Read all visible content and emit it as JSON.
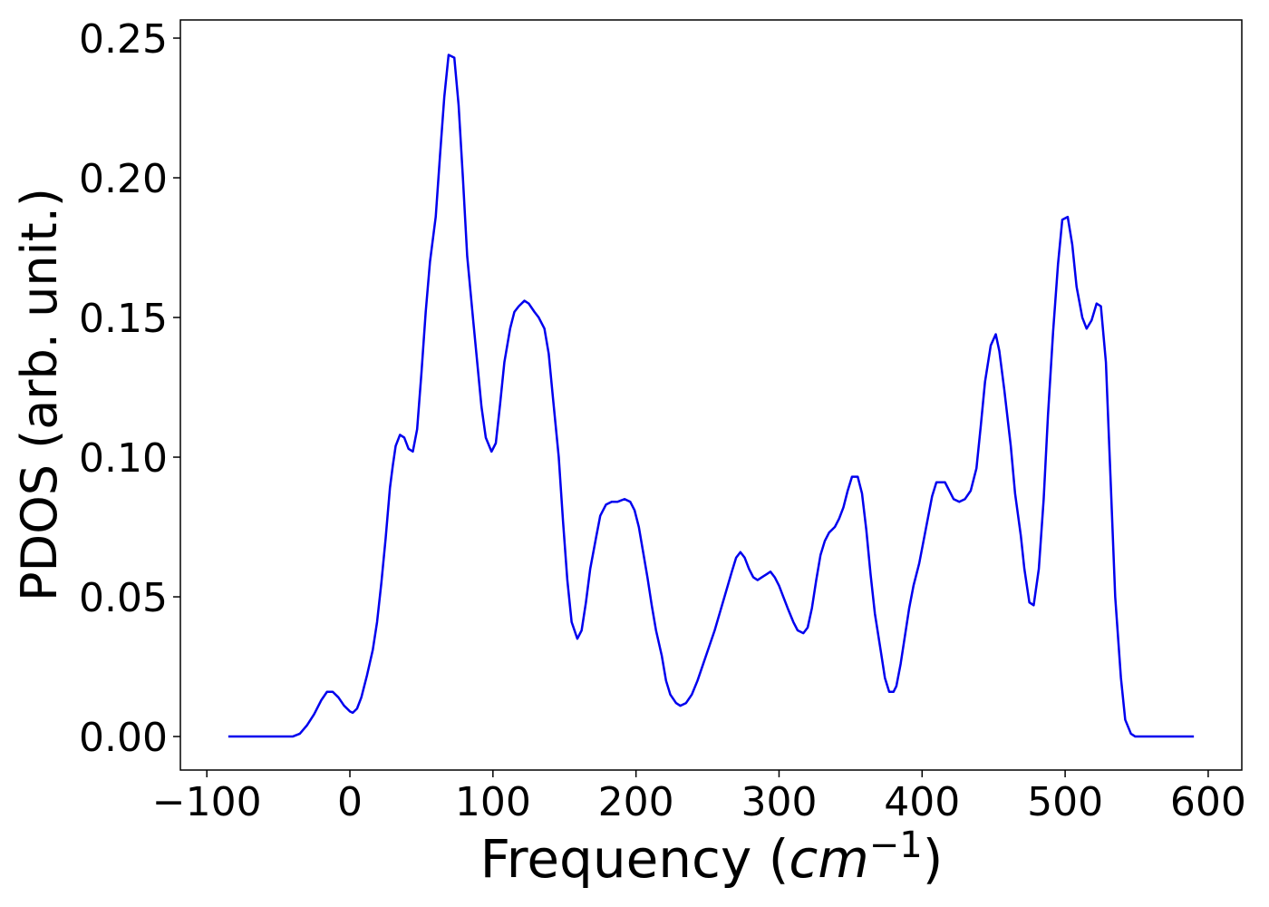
{
  "chart_data": {
    "type": "line",
    "ylabel": "PDOS (arb. unit.)",
    "xlabel": [
      "Frequency (",
      "cm",
      "−1",
      ")"
    ],
    "color": "#0000ee",
    "xlim": [
      -118.5,
      623.5
    ],
    "ylim": [
      -0.012,
      0.2565
    ],
    "xticks": [
      {
        "value": -100,
        "label": "−100"
      },
      0,
      100,
      200,
      300,
      400,
      500,
      600
    ],
    "yticks": [
      {
        "value": 0,
        "label": "0.00"
      },
      {
        "value": 0.05,
        "label": "0.05"
      },
      {
        "value": 0.1,
        "label": "0.10"
      },
      {
        "value": 0.15,
        "label": "0.15"
      },
      {
        "value": 0.2,
        "label": "0.20"
      },
      {
        "value": 0.25,
        "label": "0.25"
      }
    ],
    "x": [
      -85,
      -40,
      -35,
      -30,
      -25,
      -20,
      -16,
      -12,
      -8,
      -4,
      0,
      2,
      5,
      8,
      12,
      16,
      19,
      22,
      25,
      28,
      30,
      32,
      35,
      38,
      41,
      44,
      47,
      50,
      53,
      56,
      60,
      63,
      66,
      69,
      73,
      76,
      79,
      82,
      86,
      89,
      92,
      95,
      99,
      102,
      105,
      108,
      112,
      115,
      118,
      122,
      125,
      129,
      132,
      136,
      139,
      142,
      146,
      149,
      152,
      155,
      159,
      162,
      165,
      168,
      172,
      175,
      179,
      183,
      187,
      192,
      196,
      199,
      202,
      205,
      208,
      211,
      214,
      218,
      221,
      224,
      228,
      231,
      235,
      239,
      243,
      247,
      251,
      255,
      259,
      263,
      267,
      270,
      273,
      276,
      279,
      282,
      285,
      288,
      291,
      294,
      297,
      300,
      303,
      306,
      310,
      313,
      317,
      320,
      323,
      326,
      329,
      332,
      335,
      339,
      342,
      345,
      348,
      351,
      355,
      358,
      361,
      364,
      367,
      371,
      374,
      377,
      380,
      382,
      385,
      388,
      391,
      394,
      398,
      401,
      404,
      407,
      410,
      416,
      419,
      422,
      426,
      430,
      434,
      438,
      441,
      444,
      448,
      451.5,
      454,
      457.5,
      462,
      465,
      469,
      471.5,
      475,
      478,
      481.6,
      485,
      488,
      491.6,
      495,
      498,
      501.8,
      505,
      508,
      512,
      515,
      518.5,
      522,
      525,
      528.5,
      531.7,
      535,
      539,
      542,
      546,
      549,
      590
    ],
    "values": [
      0,
      0,
      0.001,
      0.004,
      0.008,
      0.013,
      0.016,
      0.016,
      0.014,
      0.011,
      0.009,
      0.0085,
      0.01,
      0.014,
      0.022,
      0.031,
      0.041,
      0.055,
      0.071,
      0.089,
      0.097,
      0.104,
      0.108,
      0.107,
      0.103,
      0.102,
      0.11,
      0.13,
      0.152,
      0.17,
      0.186,
      0.208,
      0.229,
      0.244,
      0.243,
      0.226,
      0.2,
      0.172,
      0.15,
      0.134,
      0.118,
      0.107,
      0.102,
      0.105,
      0.119,
      0.134,
      0.146,
      0.152,
      0.154,
      0.156,
      0.155,
      0.152,
      0.15,
      0.146,
      0.137,
      0.121,
      0.1,
      0.077,
      0.056,
      0.041,
      0.035,
      0.038,
      0.048,
      0.06,
      0.071,
      0.079,
      0.083,
      0.084,
      0.084,
      0.085,
      0.084,
      0.081,
      0.075,
      0.066,
      0.057,
      0.047,
      0.038,
      0.029,
      0.02,
      0.015,
      0.012,
      0.011,
      0.012,
      0.015,
      0.02,
      0.026,
      0.032,
      0.038,
      0.045,
      0.052,
      0.059,
      0.064,
      0.066,
      0.064,
      0.06,
      0.057,
      0.056,
      0.057,
      0.058,
      0.059,
      0.057,
      0.054,
      0.05,
      0.046,
      0.041,
      0.038,
      0.037,
      0.039,
      0.046,
      0.056,
      0.065,
      0.07,
      0.073,
      0.075,
      0.078,
      0.082,
      0.088,
      0.093,
      0.093,
      0.087,
      0.074,
      0.058,
      0.044,
      0.031,
      0.021,
      0.016,
      0.016,
      0.018,
      0.026,
      0.036,
      0.046,
      0.054,
      0.062,
      0.07,
      0.078,
      0.086,
      0.091,
      0.091,
      0.088,
      0.085,
      0.084,
      0.085,
      0.088,
      0.096,
      0.111,
      0.127,
      0.14,
      0.144,
      0.138,
      0.124,
      0.104,
      0.087,
      0.072,
      0.06,
      0.048,
      0.047,
      0.06,
      0.085,
      0.115,
      0.145,
      0.169,
      0.185,
      0.186,
      0.176,
      0.161,
      0.15,
      0.146,
      0.149,
      0.155,
      0.154,
      0.134,
      0.093,
      0.05,
      0.021,
      0.006,
      0.001,
      0,
      0
    ]
  }
}
